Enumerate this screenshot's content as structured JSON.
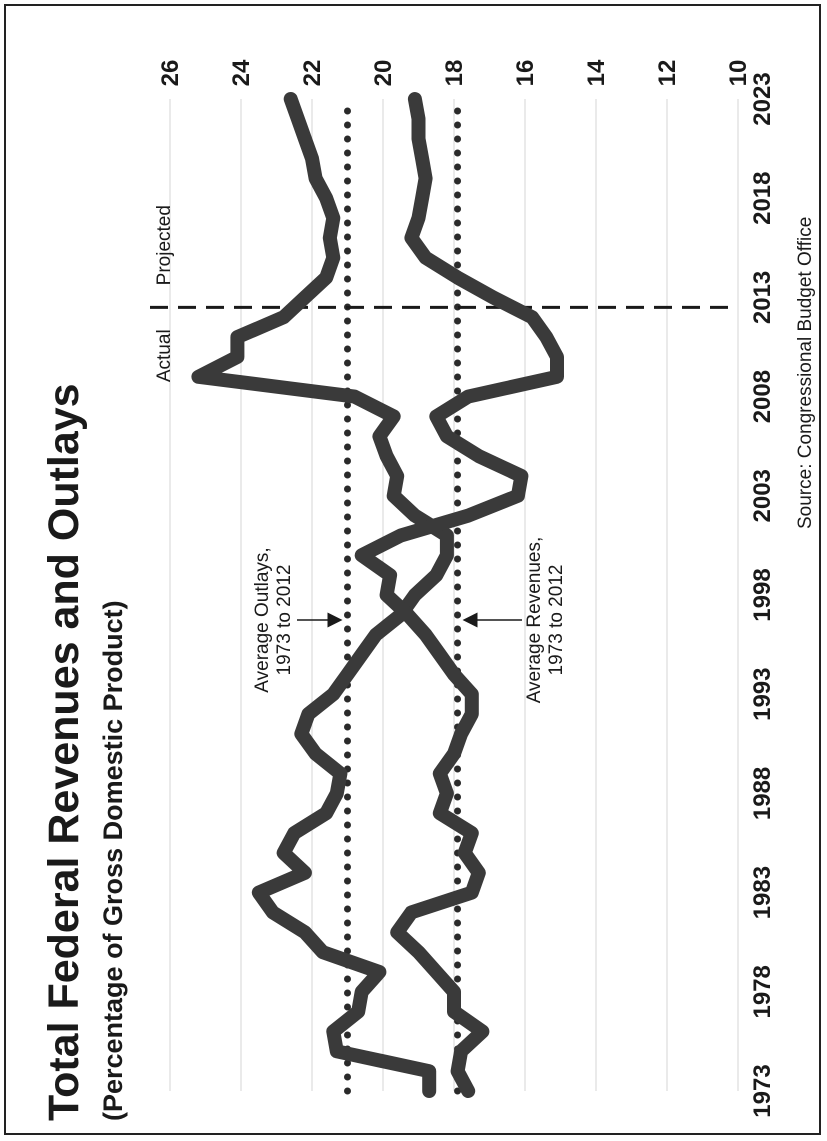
{
  "chart_data": {
    "type": "line",
    "title": "Total Federal Revenues and Outlays",
    "subtitle": "(Percentage of Gross Domestic Product)",
    "source": "Source:  Congressional Budget Office",
    "xlim": [
      1973,
      2023
    ],
    "ylim": [
      10,
      26
    ],
    "x_ticks": [
      "1973",
      "1978",
      "1983",
      "1988",
      "1993",
      "1998",
      "2003",
      "2008",
      "2013",
      "2018",
      "2023"
    ],
    "y_ticks": [
      "10",
      "12",
      "14",
      "16",
      "18",
      "20",
      "22",
      "24",
      "26"
    ],
    "grid": true,
    "series": [
      {
        "id": "outlays",
        "color": "#3a3a3a",
        "x": [
          1973,
          1974,
          1975,
          1976,
          1977,
          1978,
          1979,
          1980,
          1981,
          1982,
          1983,
          1984,
          1985,
          1986,
          1987,
          1988,
          1989,
          1990,
          1991,
          1992,
          1993,
          1994,
          1995,
          1996,
          1997,
          1998,
          1999,
          2000,
          2001,
          2002,
          2003,
          2004,
          2005,
          2006,
          2007,
          2008,
          2009,
          2010,
          2011,
          2012,
          2013,
          2014,
          2015,
          2016,
          2017,
          2018,
          2019,
          2020,
          2021,
          2022,
          2023
        ],
        "y": [
          18.7,
          18.7,
          21.3,
          21.4,
          20.7,
          20.6,
          20.1,
          21.7,
          22.2,
          23.1,
          23.5,
          22.2,
          22.8,
          22.5,
          21.6,
          21.3,
          21.2,
          21.9,
          22.3,
          22.1,
          21.4,
          21.0,
          20.6,
          20.2,
          19.5,
          19.1,
          18.5,
          18.2,
          18.2,
          19.1,
          19.7,
          19.6,
          19.9,
          20.1,
          19.7,
          20.8,
          25.2,
          24.1,
          24.1,
          22.8,
          22.2,
          21.6,
          21.4,
          21.5,
          21.4,
          21.6,
          21.9,
          22.0,
          22.2,
          22.4,
          22.6
        ]
      },
      {
        "id": "revenues",
        "color": "#3a3a3a",
        "x": [
          1973,
          1974,
          1975,
          1976,
          1977,
          1978,
          1979,
          1980,
          1981,
          1982,
          1983,
          1984,
          1985,
          1986,
          1987,
          1988,
          1989,
          1990,
          1991,
          1992,
          1993,
          1994,
          1995,
          1996,
          1997,
          1998,
          1999,
          2000,
          2001,
          2002,
          2003,
          2004,
          2005,
          2006,
          2007,
          2008,
          2009,
          2010,
          2011,
          2012,
          2013,
          2014,
          2015,
          2016,
          2017,
          2018,
          2019,
          2020,
          2021,
          2022,
          2023
        ],
        "y": [
          17.6,
          17.9,
          17.8,
          17.2,
          18.0,
          18.0,
          18.5,
          19.0,
          19.6,
          19.2,
          17.5,
          17.3,
          17.7,
          17.5,
          18.4,
          18.2,
          18.4,
          18.0,
          17.8,
          17.5,
          17.5,
          18.0,
          18.4,
          18.8,
          19.3,
          19.9,
          19.8,
          20.6,
          19.5,
          17.6,
          16.2,
          16.1,
          17.3,
          18.2,
          18.5,
          17.6,
          15.1,
          15.1,
          15.4,
          15.8,
          16.9,
          17.9,
          18.8,
          19.2,
          19.0,
          18.9,
          18.8,
          18.9,
          19.0,
          19.0,
          19.1
        ]
      }
    ],
    "reference_lines": [
      {
        "id": "avg-outlays",
        "y": 21.0,
        "label_line1": "Average Outlays,",
        "label_line2": "1973 to 2012"
      },
      {
        "id": "avg-revenues",
        "y": 17.9,
        "label_line1": "Average Revenues,",
        "label_line2": "1973 to 2012"
      }
    ],
    "divider": {
      "x": 2012.5,
      "left_label": "Actual",
      "right_label": "Projected"
    }
  }
}
